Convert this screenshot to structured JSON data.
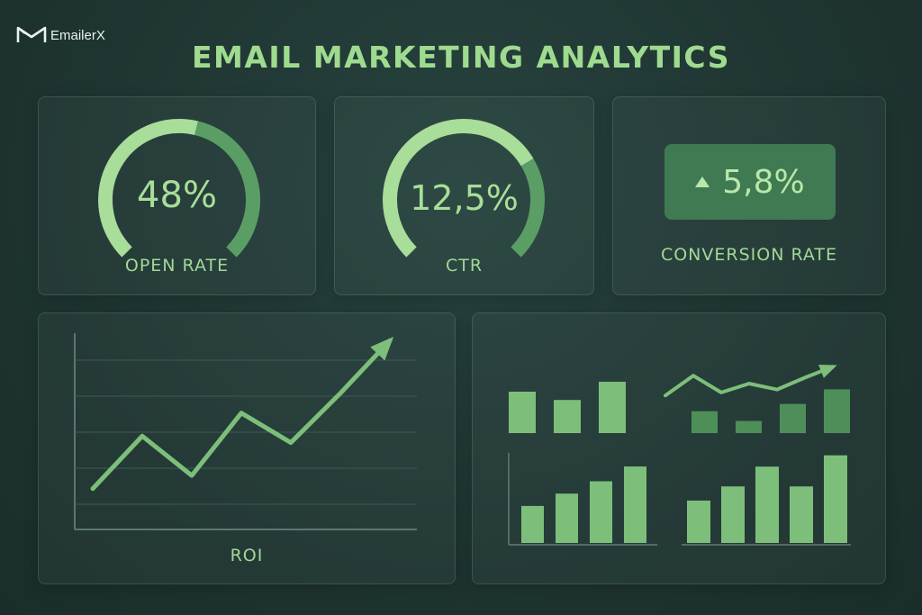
{
  "brand": {
    "name": "EmailerX",
    "logo_icon": "email-envelope-m-icon"
  },
  "title": "EMAIL MARKETING ANALYTICS",
  "kpis": {
    "open_rate": {
      "value_text": "48%",
      "label": "OPEN RATE",
      "fraction": 0.48
    },
    "ctr": {
      "value_text": "12,5%",
      "label": "CTR",
      "fraction": 0.125
    },
    "conversion": {
      "value_text": "5,8%",
      "label": "CONVERSION RATE",
      "trend_icon": "triangle-up-icon"
    }
  },
  "colors": {
    "accent_light": "#a8dd9a",
    "accent_dark": "#5a9e66",
    "bar": "#7dbf7a",
    "bar_dark": "#4e8f59",
    "grid": "#3f5a55",
    "axis": "#6e8a85"
  },
  "chart_data": [
    {
      "type": "line",
      "title": "",
      "xlabel": "ROI",
      "ylabel": "",
      "grid": true,
      "x": [
        0,
        1,
        2,
        3,
        4,
        5,
        6
      ],
      "y": [
        0.5,
        2.1,
        0.9,
        2.8,
        1.9,
        3.4,
        5.0
      ],
      "ylim": [
        0,
        5.2
      ],
      "arrow_end": true
    },
    {
      "type": "bar",
      "title": "",
      "values": [
        5,
        4,
        6.2
      ]
    },
    {
      "type": "line",
      "title": "",
      "y": [
        0.8,
        2.8,
        1.1,
        2.0,
        1.4,
        2.6,
        3.7
      ],
      "arrow_end": true
    },
    {
      "type": "bar",
      "title": "",
      "values": [
        1.8,
        1.0,
        2.4,
        3.6
      ]
    },
    {
      "type": "bar",
      "title": "",
      "values": [
        3,
        4,
        5,
        6.2
      ]
    },
    {
      "type": "bar",
      "title": "",
      "values": [
        3,
        4,
        5.4,
        4,
        6.2
      ]
    }
  ]
}
